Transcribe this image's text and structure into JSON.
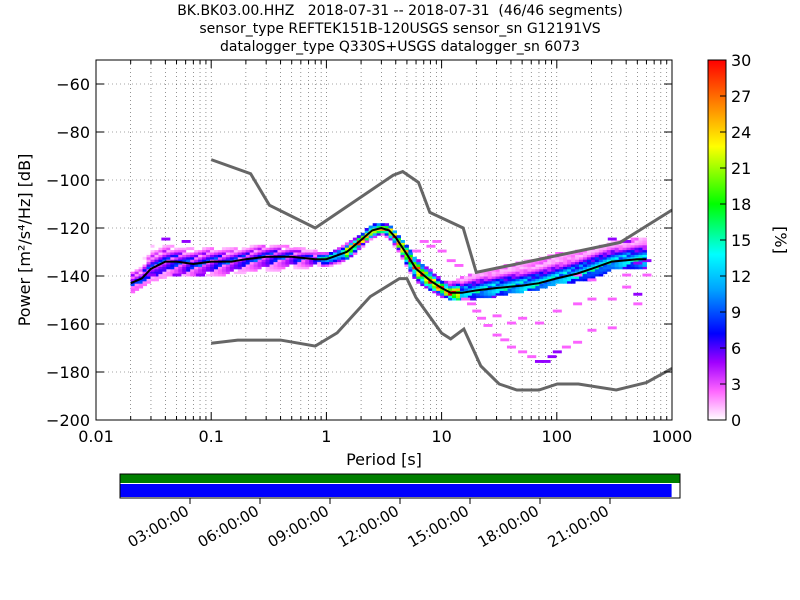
{
  "title": {
    "line1": "BK.BK03.00.HHZ   2018-07-31 -- 2018-07-31  (46/46 segments)",
    "line2": "sensor_type REFTEK151B-120USGS sensor_sn G12191VS",
    "line3": "datalogger_type Q330S+USGS datalogger_sn 6073"
  },
  "colors": {
    "colormap": [
      "#ffffff",
      "#ff00ff",
      "#0000ff",
      "#00ffff",
      "#00ff00",
      "#ffff00",
      "#ff8000",
      "#ff0000"
    ],
    "model_lines": "#666666",
    "mode_line": "#000000",
    "coverage_top": "#007f00",
    "coverage_bottom": "#0000ff"
  },
  "chart_data": {
    "type": "heatmap",
    "xlabel": "Period [s]",
    "ylabel": "Power [m²/s⁴/Hz] [dB]",
    "xscale": "log",
    "xlim": [
      0.01,
      1000
    ],
    "ylim": [
      -200,
      -50
    ],
    "grid": true,
    "x_ticks": [
      {
        "value": 0.01,
        "label": "0.01"
      },
      {
        "value": 0.1,
        "label": "0.1"
      },
      {
        "value": 1,
        "label": "1"
      },
      {
        "value": 10,
        "label": "10"
      },
      {
        "value": 100,
        "label": "100"
      },
      {
        "value": 1000,
        "label": "1000"
      }
    ],
    "y_ticks": [
      {
        "value": -60,
        "label": "−60"
      },
      {
        "value": -80,
        "label": "−80"
      },
      {
        "value": -100,
        "label": "−100"
      },
      {
        "value": -120,
        "label": "−120"
      },
      {
        "value": -140,
        "label": "−140"
      },
      {
        "value": -160,
        "label": "−160"
      },
      {
        "value": -180,
        "label": "−180"
      },
      {
        "value": -200,
        "label": "−200"
      }
    ],
    "colorbar": {
      "label": "[%]",
      "range": [
        0,
        30
      ],
      "ticks": [
        {
          "value": 0,
          "label": "0"
        },
        {
          "value": 3,
          "label": "3"
        },
        {
          "value": 6,
          "label": "6"
        },
        {
          "value": 9,
          "label": "9"
        },
        {
          "value": 12,
          "label": "12"
        },
        {
          "value": 15,
          "label": "15"
        },
        {
          "value": 18,
          "label": "18"
        },
        {
          "value": 21,
          "label": "21"
        },
        {
          "value": 24,
          "label": "24"
        },
        {
          "value": 27,
          "label": "27"
        },
        {
          "value": 30,
          "label": "30"
        }
      ]
    },
    "nhnm": {
      "periods": [
        0.1,
        0.22,
        0.32,
        0.8,
        3.8,
        4.6,
        6.3,
        7.9,
        15.4,
        20,
        354.8,
        1000
      ],
      "values": [
        -91.5,
        -97.4,
        -110.5,
        -120,
        -98,
        -96.5,
        -101,
        -113.5,
        -120,
        -138.5,
        -126,
        -112.5
      ]
    },
    "nlnm": {
      "periods": [
        0.1,
        0.17,
        0.4,
        0.8,
        1.24,
        2.4,
        4.3,
        5.0,
        6.0,
        10.0,
        12.0,
        15.6,
        21.9,
        31.6,
        45.0,
        70.0,
        101.0,
        154.0,
        328.0,
        600.0,
        1000.0
      ],
      "values": [
        -168,
        -166.7,
        -166.7,
        -169.2,
        -163.7,
        -148.6,
        -141.1,
        -141.1,
        -149.0,
        -163.8,
        -166.2,
        -162.1,
        -177.5,
        -185.0,
        -187.5,
        -187.5,
        -185.0,
        -185.0,
        -187.5,
        -184.4,
        -178.5
      ]
    },
    "mode": {
      "periods": [
        0.02,
        0.025,
        0.03,
        0.04,
        0.05,
        0.07,
        0.1,
        0.15,
        0.2,
        0.3,
        0.5,
        0.8,
        1.0,
        1.5,
        2.0,
        2.5,
        3.0,
        3.5,
        4.0,
        5.0,
        6.0,
        8.0,
        10.0,
        12.0,
        15.0,
        20.0,
        30.0,
        50.0,
        70.0,
        100.0,
        150.0,
        200.0,
        300.0,
        500.0,
        600.0
      ],
      "values": [
        -143,
        -141,
        -137,
        -134,
        -134,
        -135,
        -134,
        -134,
        -133,
        -132,
        -132,
        -133,
        -133,
        -130,
        -125,
        -121,
        -120,
        -121,
        -124,
        -131,
        -137,
        -142,
        -145,
        -147,
        -147,
        -146,
        -145,
        -144,
        -143,
        -141,
        -139,
        -137,
        -134,
        -133,
        -133
      ]
    },
    "ppsd_band": {
      "periods": [
        0.02,
        0.025,
        0.03,
        0.04,
        0.06,
        0.1,
        0.2,
        0.3,
        0.5,
        0.8,
        1.0,
        1.5,
        2.0,
        2.5,
        3.0,
        3.5,
        4.0,
        5.0,
        6.0,
        8.0,
        10.0,
        12.0,
        15.0,
        20.0,
        30.0,
        50.0,
        70.0,
        100.0,
        200.0,
        300.0,
        600.0
      ],
      "upper": [
        -137,
        -135,
        -128,
        -127,
        -128,
        -128,
        -128,
        -127,
        -128,
        -130,
        -131,
        -127,
        -123,
        -119,
        -118,
        -119,
        -122,
        -128,
        -133,
        -138,
        -142,
        -143,
        -141,
        -139,
        -137,
        -134,
        -133,
        -131,
        -129,
        -126,
        -124
      ],
      "lower": [
        -147,
        -144,
        -142,
        -140,
        -140,
        -140,
        -138,
        -138,
        -137,
        -136,
        -136,
        -133,
        -128,
        -124,
        -122,
        -124,
        -128,
        -136,
        -142,
        -146,
        -148,
        -150,
        -150,
        -149,
        -148,
        -146,
        -145,
        -143,
        -141,
        -137,
        -136
      ]
    },
    "outliers": [
      {
        "period": 7,
        "db": -126,
        "pct": 1
      },
      {
        "period": 9,
        "db": -126,
        "pct": 1
      },
      {
        "period": 8,
        "db": -128,
        "pct": 1
      },
      {
        "period": 6,
        "db": -130,
        "pct": 1
      },
      {
        "period": 10,
        "db": -130,
        "pct": 1
      },
      {
        "period": 12,
        "db": -134,
        "pct": 1
      },
      {
        "period": 14,
        "db": -136,
        "pct": 1
      },
      {
        "period": 16,
        "db": -150,
        "pct": 1
      },
      {
        "period": 18,
        "db": -152,
        "pct": 1
      },
      {
        "period": 20,
        "db": -155,
        "pct": 1
      },
      {
        "period": 22,
        "db": -158,
        "pct": 1
      },
      {
        "period": 25,
        "db": -161,
        "pct": 1
      },
      {
        "period": 30,
        "db": -165,
        "pct": 1
      },
      {
        "period": 35,
        "db": -167,
        "pct": 1
      },
      {
        "period": 40,
        "db": -170,
        "pct": 1
      },
      {
        "period": 50,
        "db": -172,
        "pct": 1
      },
      {
        "period": 60,
        "db": -174,
        "pct": 1
      },
      {
        "period": 70,
        "db": -176,
        "pct": 2
      },
      {
        "period": 80,
        "db": -176,
        "pct": 2
      },
      {
        "period": 90,
        "db": -174,
        "pct": 2
      },
      {
        "period": 100,
        "db": -172,
        "pct": 2
      },
      {
        "period": 120,
        "db": -170,
        "pct": 1
      },
      {
        "period": 150,
        "db": -168,
        "pct": 1
      },
      {
        "period": 50,
        "db": -158,
        "pct": 1
      },
      {
        "period": 70,
        "db": -160,
        "pct": 1
      },
      {
        "period": 100,
        "db": -155,
        "pct": 1
      },
      {
        "period": 150,
        "db": -152,
        "pct": 1
      },
      {
        "period": 200,
        "db": -150,
        "pct": 1
      },
      {
        "period": 300,
        "db": -150,
        "pct": 1
      },
      {
        "period": 500,
        "db": -148,
        "pct": 2
      },
      {
        "period": 500,
        "db": -152,
        "pct": 1
      },
      {
        "period": 300,
        "db": -162,
        "pct": 1
      },
      {
        "period": 200,
        "db": -163,
        "pct": 1
      },
      {
        "period": 40,
        "db": -160,
        "pct": 1
      },
      {
        "period": 30,
        "db": -157,
        "pct": 1
      },
      {
        "period": 150,
        "db": -140,
        "pct": 1
      },
      {
        "period": 200,
        "db": -142,
        "pct": 1
      },
      {
        "period": 400,
        "db": -145,
        "pct": 1
      },
      {
        "period": 400,
        "db": -140,
        "pct": 1
      },
      {
        "period": 600,
        "db": -140,
        "pct": 1
      },
      {
        "period": 500,
        "db": -135,
        "pct": 2
      },
      {
        "period": 600,
        "db": -134,
        "pct": 2
      },
      {
        "period": 300,
        "db": -125,
        "pct": 2
      },
      {
        "period": 400,
        "db": -126,
        "pct": 2
      },
      {
        "period": 0.03,
        "db": -140,
        "pct": 2
      },
      {
        "period": 0.05,
        "db": -140,
        "pct": 2
      },
      {
        "period": 0.08,
        "db": -140,
        "pct": 2
      },
      {
        "period": 0.04,
        "db": -125,
        "pct": 2
      },
      {
        "period": 0.06,
        "db": -126,
        "pct": 2
      }
    ],
    "coverage": {
      "time_labels": [
        "03:00:00",
        "06:00:00",
        "09:00:00",
        "12:00:00",
        "15:00:00",
        "18:00:00",
        "21:00:00"
      ],
      "fraction_covered": 0.985
    }
  }
}
